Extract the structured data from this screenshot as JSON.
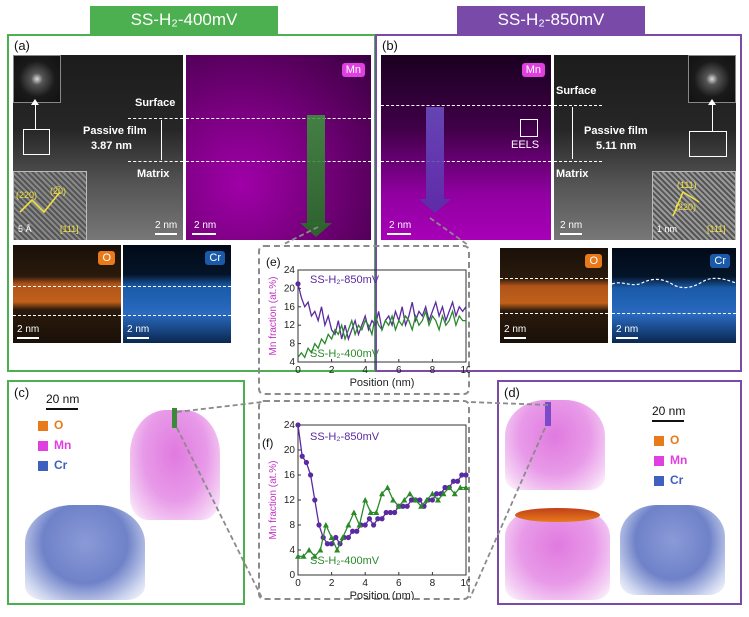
{
  "headers": {
    "left": "SS-H₂-400mV",
    "right": "SS-H₂-850mV",
    "left_color": "#4caf50",
    "right_color": "#7a4aa8"
  },
  "panels": {
    "a": "(a)",
    "b": "(b)",
    "c": "(c)",
    "d": "(d)",
    "e": "(e)",
    "f": "(f)"
  },
  "panel_a": {
    "surface": "Surface",
    "passive_film": "Passive film",
    "thickness": "3.87  nm",
    "matrix": "Matrix",
    "scale_main": "2 nm",
    "scale_inset": "5 Å",
    "zone_axis": "[111]",
    "plane1": "(220)",
    "plane2": "(2̅0)",
    "map_mn": "Mn",
    "map_o": "O",
    "map_cr": "Cr",
    "scale_mn": "2 nm",
    "scale_o": "2 nm",
    "scale_cr": "2 nm"
  },
  "panel_b": {
    "surface": "Surface",
    "passive_film": "Passive film",
    "thickness": "5.11  nm",
    "matrix": "Matrix",
    "eels": "EELS",
    "scale_main": "2 nm",
    "scale_inset": "1 nm",
    "zone_axis": "[111]",
    "plane1": "(111)",
    "plane2": "(220)",
    "map_mn": "Mn",
    "map_o": "O",
    "map_cr": "Cr",
    "scale_mn": "2 nm",
    "scale_o": "2 nm",
    "scale_cr": "2 nm"
  },
  "panel_c": {
    "scale": "20 nm",
    "legend": [
      "O",
      "Mn",
      "Cr"
    ],
    "legend_colors": [
      "#e87a1a",
      "#e040e0",
      "#4060c0"
    ]
  },
  "panel_d": {
    "scale": "20 nm",
    "legend": [
      "O",
      "Mn",
      "Cr"
    ],
    "legend_colors": [
      "#e87a1a",
      "#e040e0",
      "#4060c0"
    ]
  },
  "chart_data": [
    {
      "id": "e",
      "type": "line",
      "xlabel": "Position (nm)",
      "ylabel": "Mn fraction (at.%)",
      "xlim": [
        0,
        10
      ],
      "ylim": [
        4,
        24
      ],
      "xticks": [
        0,
        2,
        4,
        6,
        8,
        10
      ],
      "yticks": [
        4,
        8,
        12,
        16,
        20,
        24
      ],
      "series": [
        {
          "name": "SS-H₂-850mV",
          "color": "#5a2aa0",
          "x": [
            0,
            0.2,
            0.4,
            0.6,
            0.8,
            1.0,
            1.2,
            1.4,
            1.6,
            1.8,
            2.0,
            2.2,
            2.4,
            2.6,
            2.8,
            3.0,
            3.2,
            3.4,
            3.6,
            3.8,
            4.0,
            4.2,
            4.4,
            4.6,
            4.8,
            5.0,
            5.2,
            5.4,
            5.6,
            5.8,
            6.0,
            6.2,
            6.4,
            6.6,
            6.8,
            7.0,
            7.2,
            7.4,
            7.6,
            7.8,
            8.0,
            8.2,
            8.4,
            8.6,
            8.8,
            9.0,
            9.2,
            9.4,
            9.6,
            9.8,
            10.0
          ],
          "values": [
            21,
            18,
            16,
            17,
            14,
            15,
            13,
            16,
            12,
            14,
            11,
            10,
            13,
            9,
            12,
            9,
            11,
            13,
            10,
            12,
            14,
            11,
            13,
            12,
            15,
            11,
            13,
            14,
            12,
            15,
            13,
            16,
            12,
            14,
            17,
            13,
            15,
            14,
            16,
            13,
            15,
            17,
            14,
            16,
            13,
            15,
            17,
            14,
            16,
            15,
            16
          ]
        },
        {
          "name": "SS-H₂-400mV",
          "color": "#2a8a2a",
          "x": [
            0,
            0.2,
            0.4,
            0.6,
            0.8,
            1.0,
            1.2,
            1.4,
            1.6,
            1.8,
            2.0,
            2.2,
            2.4,
            2.6,
            2.8,
            3.0,
            3.2,
            3.4,
            3.6,
            3.8,
            4.0,
            4.2,
            4.4,
            4.6,
            4.8,
            5.0,
            5.2,
            5.4,
            5.6,
            5.8,
            6.0,
            6.2,
            6.4,
            6.6,
            6.8,
            7.0,
            7.2,
            7.4,
            7.6,
            7.8,
            8.0,
            8.2,
            8.4,
            8.6,
            8.8,
            9.0,
            9.2,
            9.4,
            9.6,
            9.8,
            10.0
          ],
          "values": [
            5,
            6,
            5,
            7,
            6,
            8,
            7,
            9,
            8,
            10,
            9,
            11,
            10,
            12,
            9,
            11,
            13,
            10,
            12,
            11,
            13,
            12,
            10,
            14,
            12,
            11,
            13,
            12,
            14,
            11,
            13,
            12,
            14,
            13,
            11,
            14,
            12,
            13,
            15,
            12,
            14,
            13,
            11,
            14,
            12,
            13,
            15,
            12,
            14,
            13,
            13
          ]
        }
      ]
    },
    {
      "id": "f",
      "type": "line",
      "xlabel": "Position (nm)",
      "ylabel": "Mn fraction (at.%)",
      "xlim": [
        0,
        10
      ],
      "ylim": [
        0,
        24
      ],
      "xticks": [
        0,
        2,
        4,
        6,
        8,
        10
      ],
      "yticks": [
        0,
        4,
        8,
        12,
        16,
        20,
        24
      ],
      "series": [
        {
          "name": "SS-H₂-850mV",
          "color": "#5a2aa0",
          "marker": "circle",
          "x": [
            0,
            0.25,
            0.5,
            0.75,
            1.0,
            1.25,
            1.5,
            1.75,
            2.0,
            2.25,
            2.5,
            2.75,
            3.0,
            3.25,
            3.5,
            3.75,
            4.0,
            4.25,
            4.5,
            4.75,
            5.0,
            5.25,
            5.5,
            5.75,
            6.0,
            6.25,
            6.5,
            6.75,
            7.0,
            7.25,
            7.5,
            7.75,
            8.0,
            8.25,
            8.5,
            8.75,
            9.0,
            9.25,
            9.5,
            9.75,
            10.0
          ],
          "values": [
            24,
            19,
            18,
            16,
            12,
            8,
            6,
            5,
            5,
            6,
            5,
            6,
            6,
            7,
            7,
            8,
            8,
            9,
            8,
            9,
            9,
            10,
            10,
            10,
            11,
            11,
            11,
            12,
            12,
            12,
            11,
            12,
            12,
            13,
            13,
            14,
            14,
            15,
            15,
            16,
            16
          ]
        },
        {
          "name": "SS-H₂-400mV",
          "color": "#2a8a2a",
          "marker": "triangle",
          "x": [
            0,
            0.33,
            0.66,
            1.0,
            1.33,
            1.66,
            2.0,
            2.33,
            2.66,
            3.0,
            3.33,
            3.66,
            4.0,
            4.33,
            4.66,
            5.0,
            5.33,
            5.66,
            6.0,
            6.33,
            6.66,
            7.0,
            7.33,
            7.66,
            8.0,
            8.33,
            8.66,
            9.0,
            9.33,
            9.66,
            10.0
          ],
          "values": [
            3,
            3,
            4,
            3,
            4,
            8,
            6,
            4,
            6,
            8,
            10,
            8,
            12,
            10,
            10,
            13,
            14,
            12,
            11,
            12,
            13,
            12,
            11,
            12,
            13,
            12,
            13,
            14,
            13,
            14,
            14
          ]
        }
      ]
    }
  ]
}
